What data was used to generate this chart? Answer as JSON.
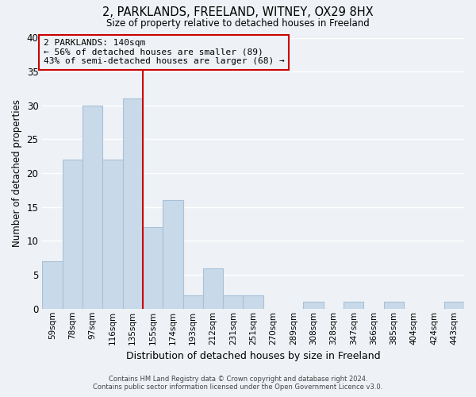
{
  "title": "2, PARKLANDS, FREELAND, WITNEY, OX29 8HX",
  "subtitle": "Size of property relative to detached houses in Freeland",
  "xlabel": "Distribution of detached houses by size in Freeland",
  "ylabel": "Number of detached properties",
  "bar_color": "#c8daea",
  "bar_edge_color": "#a8c0d6",
  "categories": [
    "59sqm",
    "78sqm",
    "97sqm",
    "116sqm",
    "135sqm",
    "155sqm",
    "174sqm",
    "193sqm",
    "212sqm",
    "231sqm",
    "251sqm",
    "270sqm",
    "289sqm",
    "308sqm",
    "328sqm",
    "347sqm",
    "366sqm",
    "385sqm",
    "404sqm",
    "424sqm",
    "443sqm"
  ],
  "values": [
    7,
    22,
    30,
    22,
    31,
    12,
    16,
    2,
    6,
    2,
    2,
    0,
    0,
    1,
    0,
    1,
    0,
    1,
    0,
    0,
    1
  ],
  "ylim": [
    0,
    40
  ],
  "yticks": [
    0,
    5,
    10,
    15,
    20,
    25,
    30,
    35,
    40
  ],
  "vline_index": 5,
  "vline_color": "#cc0000",
  "annotation_title": "2 PARKLANDS: 140sqm",
  "annotation_line1": "← 56% of detached houses are smaller (89)",
  "annotation_line2": "43% of semi-detached houses are larger (68) →",
  "annotation_box_edge_color": "#cc0000",
  "footer_line1": "Contains HM Land Registry data © Crown copyright and database right 2024.",
  "footer_line2": "Contains public sector information licensed under the Open Government Licence v3.0.",
  "background_color": "#eef2f6",
  "grid_color": "#ffffff"
}
